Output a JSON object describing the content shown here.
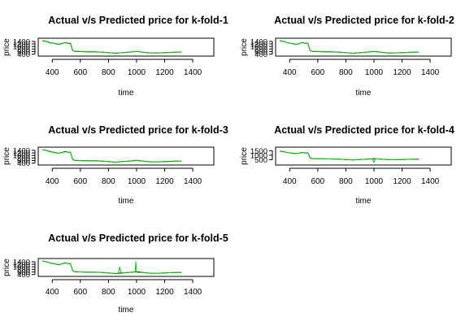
{
  "chart_data": [
    {
      "type": "line",
      "title": "Actual v/s Predicted price for k-fold-1",
      "xlabel": "time",
      "ylabel": "price",
      "xlim": [
        300,
        1550
      ],
      "ylim": [
        250,
        1650
      ],
      "x_ticks": [
        "400",
        "600",
        "800",
        "1000",
        "1200",
        "1400"
      ],
      "y_ticks": [
        "400",
        "600",
        "800",
        "1000",
        "1200",
        "1400"
      ],
      "series": [
        {
          "color": "#000000",
          "x": [
            330,
            350,
            370,
            390,
            410,
            430,
            450,
            470,
            490,
            510,
            530,
            545,
            560,
            600,
            650,
            700,
            750,
            800,
            850,
            900,
            950,
            1000,
            1050,
            1100,
            1150,
            1200,
            1250,
            1300,
            1320
          ],
          "y": [
            1450,
            1420,
            1350,
            1290,
            1250,
            1200,
            1180,
            1230,
            1310,
            1260,
            1240,
            700,
            620,
            600,
            590,
            580,
            560,
            520,
            470,
            520,
            560,
            610,
            550,
            500,
            500,
            520,
            540,
            560,
            560
          ]
        },
        {
          "color": "#00cc00",
          "x": [
            330,
            350,
            370,
            390,
            410,
            430,
            450,
            470,
            490,
            510,
            530,
            545,
            560,
            600,
            650,
            700,
            750,
            800,
            850,
            900,
            950,
            1000,
            1050,
            1100,
            1150,
            1200,
            1250,
            1300,
            1320
          ],
          "y": [
            1420,
            1440,
            1330,
            1270,
            1260,
            1180,
            1200,
            1250,
            1300,
            1240,
            1220,
            680,
            630,
            610,
            580,
            585,
            565,
            515,
            480,
            515,
            570,
            620,
            545,
            505,
            495,
            525,
            535,
            565,
            555
          ]
        }
      ]
    },
    {
      "type": "line",
      "title": "Actual v/s Predicted price for k-fold-2",
      "xlabel": "time",
      "ylabel": "price",
      "xlim": [
        300,
        1550
      ],
      "ylim": [
        250,
        1650
      ],
      "x_ticks": [
        "400",
        "600",
        "800",
        "1000",
        "1200",
        "1400"
      ],
      "y_ticks": [
        "400",
        "600",
        "800",
        "1000",
        "1200",
        "1400"
      ],
      "series": [
        {
          "color": "#000000",
          "x": [
            330,
            350,
            370,
            390,
            410,
            430,
            450,
            470,
            490,
            510,
            530,
            545,
            560,
            600,
            650,
            700,
            750,
            800,
            850,
            900,
            950,
            1000,
            1050,
            1100,
            1150,
            1200,
            1250,
            1300,
            1320
          ],
          "y": [
            1450,
            1420,
            1350,
            1290,
            1250,
            1200,
            1180,
            1230,
            1310,
            1260,
            1240,
            700,
            620,
            600,
            590,
            580,
            560,
            520,
            470,
            520,
            560,
            610,
            550,
            500,
            500,
            520,
            540,
            560,
            560
          ]
        },
        {
          "color": "#00cc00",
          "x": [
            330,
            350,
            370,
            390,
            410,
            430,
            450,
            470,
            490,
            510,
            530,
            545,
            560,
            600,
            650,
            700,
            750,
            800,
            850,
            900,
            950,
            1000,
            1050,
            1100,
            1150,
            1200,
            1250,
            1300,
            1320
          ],
          "y": [
            1430,
            1410,
            1360,
            1280,
            1240,
            1210,
            1190,
            1220,
            1320,
            1250,
            1230,
            690,
            625,
            605,
            585,
            575,
            555,
            525,
            475,
            525,
            565,
            600,
            555,
            495,
            505,
            515,
            545,
            555,
            565
          ]
        }
      ]
    },
    {
      "type": "line",
      "title": "Actual v/s Predicted price for k-fold-3",
      "xlabel": "time",
      "ylabel": "price",
      "xlim": [
        300,
        1550
      ],
      "ylim": [
        250,
        1650
      ],
      "x_ticks": [
        "400",
        "600",
        "800",
        "1000",
        "1200",
        "1400"
      ],
      "y_ticks": [
        "400",
        "600",
        "800",
        "1000",
        "1200",
        "1400"
      ],
      "series": [
        {
          "color": "#000000",
          "x": [
            330,
            350,
            370,
            390,
            410,
            430,
            450,
            470,
            490,
            510,
            530,
            545,
            560,
            600,
            650,
            700,
            750,
            800,
            850,
            900,
            950,
            1000,
            1050,
            1100,
            1150,
            1200,
            1250,
            1300,
            1320
          ],
          "y": [
            1450,
            1420,
            1350,
            1290,
            1250,
            1200,
            1180,
            1230,
            1310,
            1260,
            1240,
            700,
            620,
            600,
            590,
            580,
            560,
            520,
            470,
            520,
            560,
            610,
            550,
            500,
            500,
            520,
            540,
            560,
            560
          ]
        },
        {
          "color": "#00cc00",
          "x": [
            330,
            350,
            370,
            390,
            410,
            430,
            450,
            470,
            490,
            510,
            530,
            545,
            560,
            600,
            650,
            700,
            750,
            800,
            850,
            900,
            950,
            1000,
            1050,
            1100,
            1150,
            1200,
            1250,
            1300,
            1320
          ],
          "y": [
            1460,
            1400,
            1370,
            1300,
            1230,
            1190,
            1170,
            1240,
            1290,
            1270,
            1250,
            720,
            610,
            590,
            600,
            570,
            550,
            530,
            460,
            530,
            550,
            600,
            560,
            490,
            510,
            510,
            530,
            570,
            550
          ]
        }
      ]
    },
    {
      "type": "line",
      "title": "Actual v/s Predicted price for k-fold-4",
      "xlabel": "time",
      "ylabel": "price",
      "xlim": [
        300,
        1550
      ],
      "ylim": [
        -100,
        1900
      ],
      "x_ticks": [
        "400",
        "600",
        "800",
        "1000",
        "1200",
        "1400"
      ],
      "y_ticks": [
        "500",
        "1000",
        "1500"
      ],
      "series": [
        {
          "color": "#000000",
          "x": [
            330,
            350,
            370,
            390,
            410,
            430,
            450,
            470,
            490,
            510,
            530,
            545,
            560,
            600,
            650,
            700,
            750,
            800,
            850,
            900,
            950,
            1000,
            1050,
            1100,
            1150,
            1200,
            1250,
            1300,
            1320
          ],
          "y": [
            1450,
            1420,
            1350,
            1290,
            1250,
            1200,
            1180,
            1230,
            1310,
            1260,
            1240,
            700,
            620,
            600,
            590,
            580,
            560,
            520,
            470,
            520,
            560,
            610,
            550,
            500,
            500,
            520,
            540,
            560,
            560
          ]
        },
        {
          "color": "#00cc00",
          "x": [
            330,
            350,
            370,
            390,
            410,
            430,
            450,
            470,
            490,
            510,
            530,
            545,
            560,
            600,
            650,
            700,
            750,
            800,
            850,
            900,
            950,
            990,
            1000,
            1010,
            1050,
            1100,
            1150,
            1200,
            1250,
            1300,
            1320
          ],
          "y": [
            1440,
            1430,
            1340,
            1300,
            1240,
            1220,
            1170,
            1240,
            1300,
            1250,
            1230,
            710,
            615,
            595,
            595,
            575,
            565,
            510,
            480,
            515,
            555,
            580,
            200,
            600,
            545,
            505,
            495,
            525,
            535,
            565,
            555
          ]
        }
      ]
    },
    {
      "type": "line",
      "title": "Actual v/s Predicted price for k-fold-5",
      "xlabel": "time",
      "ylabel": "price",
      "xlim": [
        300,
        1550
      ],
      "ylim": [
        250,
        1650
      ],
      "x_ticks": [
        "400",
        "600",
        "800",
        "1000",
        "1200",
        "1400"
      ],
      "y_ticks": [
        "400",
        "600",
        "800",
        "1000",
        "1200",
        "1400"
      ],
      "series": [
        {
          "color": "#000000",
          "x": [
            330,
            350,
            370,
            390,
            410,
            430,
            450,
            470,
            490,
            510,
            530,
            545,
            560,
            600,
            650,
            700,
            750,
            800,
            850,
            900,
            950,
            1000,
            1050,
            1100,
            1150,
            1200,
            1250,
            1300,
            1320
          ],
          "y": [
            1450,
            1420,
            1350,
            1290,
            1250,
            1200,
            1180,
            1230,
            1310,
            1260,
            1240,
            700,
            620,
            600,
            590,
            580,
            560,
            520,
            470,
            520,
            560,
            610,
            550,
            500,
            500,
            520,
            540,
            560,
            560
          ]
        },
        {
          "color": "#00cc00",
          "x": [
            330,
            350,
            370,
            390,
            410,
            430,
            450,
            470,
            490,
            510,
            530,
            545,
            560,
            600,
            650,
            700,
            750,
            800,
            850,
            870,
            880,
            890,
            900,
            950,
            990,
            995,
            1000,
            1010,
            1050,
            1100,
            1150,
            1200,
            1250,
            1300,
            1320
          ],
          "y": [
            1460,
            1420,
            1360,
            1280,
            1260,
            1190,
            1190,
            1220,
            1300,
            1270,
            1230,
            700,
            630,
            600,
            585,
            590,
            565,
            515,
            480,
            500,
            1000,
            520,
            520,
            570,
            600,
            1400,
            620,
            560,
            550,
            500,
            505,
            520,
            540,
            560,
            555
          ]
        }
      ]
    }
  ]
}
